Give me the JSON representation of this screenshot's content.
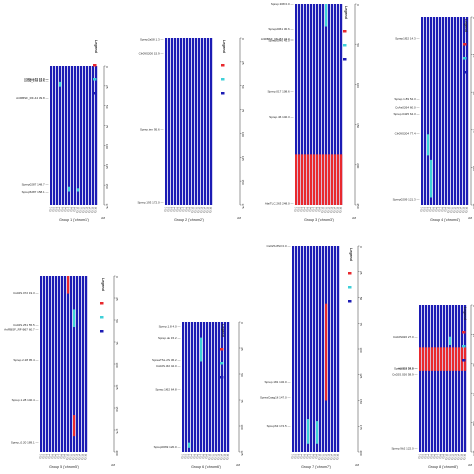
{
  "colors": {
    "background": "#ffffff",
    "bar": "#1c1cb4",
    "bar_gap": "#ffffff",
    "highlight_red": "#e8292e",
    "highlight_cyan": "#3fd0d8",
    "text": "#222222",
    "axis": "#333333",
    "legend_red": "#e8292e",
    "legend_cyan": "#3fd0d8",
    "legend_blue": "#1c1cb4"
  },
  "legend": {
    "title": "Legend"
  },
  "panels": [
    {
      "id": "group1",
      "caption": "Group 1 ('chrom1')",
      "axis_max": 175,
      "axis_ticks": [
        "0",
        "25",
        "50",
        "75",
        "100",
        "125",
        "150",
        "175"
      ],
      "unit": "cM",
      "markers": [
        {
          "label": "Cfr09_176 16.3 —",
          "pos": 16.3
        },
        {
          "label": "PtrHe12 17.0 —",
          "pos": 17.0
        },
        {
          "label": "Cfr09_178 18.5 —",
          "pos": 18.5
        },
        {
          "label": "ArtRBSF_RF-44 39.8 —",
          "pos": 39.8
        },
        {
          "label": "Sprep0287 148.7 —",
          "pos": 148.7
        },
        {
          "label": "Sprep5287 158.1 —",
          "pos": 158.1
        }
      ],
      "highlights": [
        {
          "col": 3,
          "start": 20.0,
          "end": 26.0,
          "color": "cyan"
        },
        {
          "col": 6,
          "start": 152.0,
          "end": 158.0,
          "color": "cyan"
        },
        {
          "col": 9,
          "start": 154.0,
          "end": 158.0,
          "color": "cyan"
        }
      ]
    },
    {
      "id": "group2",
      "caption": "Group 2 ('chrom2')",
      "axis_max": 175,
      "axis_ticks": [
        "0",
        "25",
        "50",
        "75",
        "100",
        "125",
        "150",
        "175"
      ],
      "unit": "cM",
      "markers": [
        {
          "label": "Sprep2a58 1.3 —",
          "pos": 1.3
        },
        {
          "label": "Cfr09S200 15.9 —",
          "pos": 15.9
        },
        {
          "label": "Sprep.ten 95.6 —",
          "pos": 95.6
        },
        {
          "label": "Sprep.193 172.0 —",
          "pos": 172.0
        }
      ],
      "highlights": []
    },
    {
      "id": "group3",
      "caption": "Group 3 ('chrom3')",
      "axis_max": 250,
      "axis_ticks": [
        "0",
        "50",
        "100",
        "150",
        "200",
        "250"
      ],
      "unit": "cM",
      "markers": [
        {
          "label": "Sprep.308 0.0 —",
          "pos": 0.0
        },
        {
          "label": "Sprep2061 30.6 —",
          "pos": 30.6
        },
        {
          "label": "ArtRBSF_RF-B7 43.0 —",
          "pos": 43.0
        },
        {
          "label": "Sprep0040 45.0 —",
          "pos": 45.0
        },
        {
          "label": "Sprep.017 108.6 —",
          "pos": 108.6
        },
        {
          "label": "Sprep.46 140.3 —",
          "pos": 140.3
        },
        {
          "label": "AlaiTLC.263 248.0 —",
          "pos": 248.0
        }
      ],
      "highlights": [
        {
          "col": 10,
          "start": 0.0,
          "end": 28.0,
          "color": "cyan"
        },
        {
          "col": 0,
          "start": 187.0,
          "end": 252.0,
          "color": "red"
        },
        {
          "col": 1,
          "start": 187.0,
          "end": 252.0,
          "color": "red"
        },
        {
          "col": 2,
          "start": 187.0,
          "end": 252.0,
          "color": "red"
        },
        {
          "col": 3,
          "start": 187.0,
          "end": 252.0,
          "color": "red"
        },
        {
          "col": 4,
          "start": 187.0,
          "end": 252.0,
          "color": "red"
        },
        {
          "col": 5,
          "start": 187.0,
          "end": 252.0,
          "color": "red"
        },
        {
          "col": 6,
          "start": 187.0,
          "end": 252.0,
          "color": "red"
        },
        {
          "col": 7,
          "start": 187.0,
          "end": 252.0,
          "color": "red"
        },
        {
          "col": 8,
          "start": 187.0,
          "end": 252.0,
          "color": "red"
        },
        {
          "col": 9,
          "start": 187.0,
          "end": 252.0,
          "color": "red"
        },
        {
          "col": 10,
          "start": 187.0,
          "end": 252.0,
          "color": "red"
        },
        {
          "col": 11,
          "start": 187.0,
          "end": 252.0,
          "color": "red"
        },
        {
          "col": 12,
          "start": 187.0,
          "end": 252.0,
          "color": "red"
        },
        {
          "col": 13,
          "start": 187.0,
          "end": 252.0,
          "color": "red"
        },
        {
          "col": 14,
          "start": 187.0,
          "end": 252.0,
          "color": "red"
        },
        {
          "col": 15,
          "start": 187.0,
          "end": 252.0,
          "color": "red"
        }
      ]
    },
    {
      "id": "group4",
      "caption": "Group 4 ('chrom4')",
      "axis_max": 125,
      "axis_ticks": [
        "0",
        "25",
        "50",
        "75",
        "100",
        "125"
      ],
      "unit": "cM",
      "markers": [
        {
          "label": "Sprep1f52 14.3 —",
          "pos": 14.3
        },
        {
          "label": "Sprep.1.89 54.3 —",
          "pos": 54.3
        },
        {
          "label": "CsAs0264 60.0 —",
          "pos": 60.0
        },
        {
          "label": "Sprep.0425 64.3 —",
          "pos": 64.3
        },
        {
          "label": "Cfr09S204 77.4 —",
          "pos": 77.4
        },
        {
          "label": "Sprep0209 121.3 —",
          "pos": 121.3
        }
      ],
      "highlights": [
        {
          "col": 2,
          "start": 78.0,
          "end": 92.0,
          "color": "cyan"
        },
        {
          "col": 3,
          "start": 95.0,
          "end": 120.0,
          "color": "cyan"
        }
      ]
    },
    {
      "id": "group5",
      "caption": "Group 5 ('chrom5')",
      "axis_max": 200,
      "axis_ticks": [
        "0",
        "25",
        "50",
        "75",
        "100",
        "125",
        "150",
        "175",
        "200"
      ],
      "unit": "cM",
      "markers": [
        {
          "label": "Cs02S.072 19.3 —",
          "pos": 19.3
        },
        {
          "label": "Cs02S.251 55.5 —",
          "pos": 55.5
        },
        {
          "label": "ArtRBSF_RF-B67 60.7 —",
          "pos": 60.7
        },
        {
          "label": "Sprep.2.28 95.4 —",
          "pos": 95.4
        },
        {
          "label": "Sprep.1.28 140.4 —",
          "pos": 140.4
        },
        {
          "label": "Sprep_0.20 189.1 —",
          "pos": 189.1
        }
      ],
      "highlights": [
        {
          "col": 9,
          "start": 0.0,
          "end": 20.0,
          "color": "red"
        },
        {
          "col": 11,
          "start": 38.0,
          "end": 58.0,
          "color": "cyan"
        },
        {
          "col": 11,
          "start": 158.0,
          "end": 182.0,
          "color": "red"
        }
      ]
    },
    {
      "id": "group6",
      "caption": "Group 6 ('chrom6')",
      "axis_max": 125,
      "axis_ticks": [
        "0",
        "25",
        "50",
        "75",
        "100",
        "125"
      ],
      "unit": "cM",
      "markers": [
        {
          "label": "Sprep.1.8 4.0 —",
          "pos": 4.0
        },
        {
          "label": "Sprep.ok 15.2 —",
          "pos": 15.2
        },
        {
          "label": "SpreaTSL.2S 36.2 —",
          "pos": 36.2
        },
        {
          "label": "Cs02S.3I2 42.0 —",
          "pos": 42.0
        },
        {
          "label": "Sprep.1f62 64.8 —",
          "pos": 64.8
        },
        {
          "label": "Sprep0069 120.0 —",
          "pos": 120.0
        }
      ],
      "highlights": [
        {
          "col": 6,
          "start": 15.0,
          "end": 38.0,
          "color": "cyan"
        },
        {
          "col": 2,
          "start": 116.0,
          "end": 121.0,
          "color": "cyan"
        }
      ]
    },
    {
      "id": "group7",
      "caption": "Group 7 ('chrom7')",
      "axis_max": 200,
      "axis_ticks": [
        "0",
        "25",
        "50",
        "75",
        "100",
        "125",
        "150",
        "175",
        "200"
      ],
      "unit": "cM",
      "markers": [
        {
          "label": "Cs02S.8S3 0.0 —",
          "pos": 0.0
        },
        {
          "label": "Sprep.181 132.0 —",
          "pos": 132.0
        },
        {
          "label": "SpreaCaag1fi 147.0 —",
          "pos": 147.0
        },
        {
          "label": "SprepS3 174.5 —",
          "pos": 174.5
        }
      ],
      "highlights": [
        {
          "col": 11,
          "start": 56.0,
          "end": 150.0,
          "color": "red"
        },
        {
          "col": 5,
          "start": 168.0,
          "end": 192.0,
          "color": "cyan"
        },
        {
          "col": 8,
          "start": 170.0,
          "end": 192.0,
          "color": "cyan"
        }
      ]
    },
    {
      "id": "group8",
      "caption": "Group 8 ('chrom8')",
      "axis_max": 125,
      "axis_ticks": [
        "0",
        "25",
        "50",
        "75",
        "100",
        "125"
      ],
      "unit": "cM",
      "markers": [
        {
          "label": "Cs02S026 27.0 —",
          "pos": 27.0
        },
        {
          "label": "AS862 54.0 —",
          "pos": 54.0
        },
        {
          "label": "Sprep.2.8 53.8 —",
          "pos": 53.8
        },
        {
          "label": "Cs02S.026 58.9 —",
          "pos": 58.9
        },
        {
          "label": "Sprep.9b2 122.0 —",
          "pos": 122.0
        }
      ],
      "highlights": [
        {
          "col": 0,
          "start": 36.0,
          "end": 56.0,
          "color": "red"
        },
        {
          "col": 1,
          "start": 36.0,
          "end": 56.0,
          "color": "red"
        },
        {
          "col": 2,
          "start": 36.0,
          "end": 56.0,
          "color": "red"
        },
        {
          "col": 3,
          "start": 36.0,
          "end": 56.0,
          "color": "red"
        },
        {
          "col": 4,
          "start": 36.0,
          "end": 56.0,
          "color": "red"
        },
        {
          "col": 5,
          "start": 36.0,
          "end": 56.0,
          "color": "red"
        },
        {
          "col": 6,
          "start": 36.0,
          "end": 56.0,
          "color": "red"
        },
        {
          "col": 7,
          "start": 36.0,
          "end": 56.0,
          "color": "red"
        },
        {
          "col": 8,
          "start": 36.0,
          "end": 56.0,
          "color": "red"
        },
        {
          "col": 9,
          "start": 36.0,
          "end": 56.0,
          "color": "red"
        },
        {
          "col": 10,
          "start": 36.0,
          "end": 56.0,
          "color": "red"
        },
        {
          "col": 11,
          "start": 36.0,
          "end": 56.0,
          "color": "red"
        },
        {
          "col": 12,
          "start": 36.0,
          "end": 56.0,
          "color": "red"
        },
        {
          "col": 13,
          "start": 36.0,
          "end": 56.0,
          "color": "red"
        },
        {
          "col": 14,
          "start": 36.0,
          "end": 56.0,
          "color": "red"
        },
        {
          "col": 15,
          "start": 36.0,
          "end": 56.0,
          "color": "red"
        },
        {
          "col": 10,
          "start": 27.0,
          "end": 34.0,
          "color": "cyan"
        }
      ]
    }
  ],
  "sample_labels": [
    "F2-1",
    "F2-2",
    "F2-3",
    "F2-4",
    "F2-5",
    "F2-6",
    "F2-7",
    "F2-8",
    "F2-9",
    "F2-10",
    "F2-11",
    "F2-12",
    "F2-13",
    "F2-14",
    "F2-15",
    "F2-16"
  ]
}
